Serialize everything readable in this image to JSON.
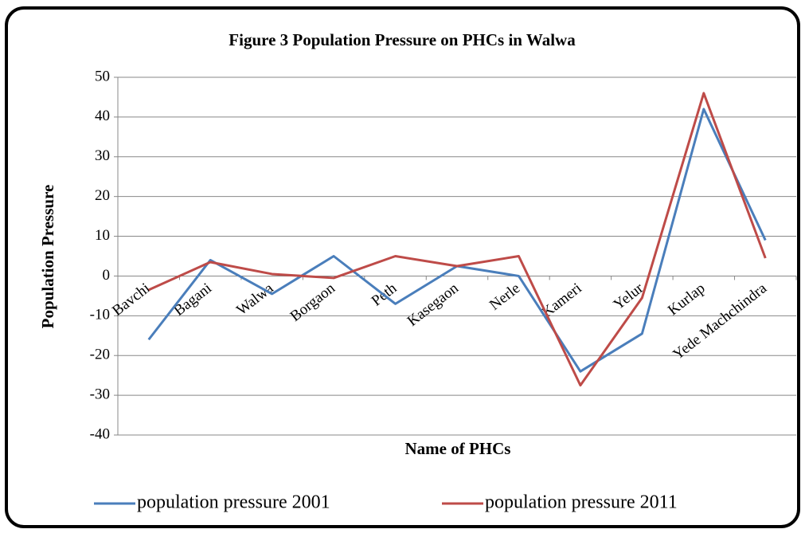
{
  "chart_data": {
    "type": "line",
    "title": "Figure 3 Population Pressure on PHCs in Walwa",
    "x_label": "Name of PHCs",
    "y_label": "Population Pressure",
    "categories": [
      "Bavchi",
      "Bagani",
      "Walwa",
      "Borgaon",
      "Peth",
      "Kasegaon",
      "Nerle",
      "Kameri",
      "Yelur",
      "Kurlap",
      "Yede Machchindra"
    ],
    "series": [
      {
        "name": "population pressure 2001",
        "color": "#4a7ebb",
        "values": [
          -16,
          4,
          -4.5,
          5,
          -7,
          2.5,
          0,
          -24,
          -14.5,
          42,
          9
        ]
      },
      {
        "name": "population pressure 2011",
        "color": "#be4b48",
        "values": [
          -3.5,
          3.5,
          0.5,
          -0.5,
          5,
          2.5,
          5,
          -27.5,
          -5.5,
          46,
          4.5
        ]
      }
    ],
    "ylim": [
      -40,
      50
    ],
    "yticks": [
      -40,
      -30,
      -20,
      -10,
      0,
      10,
      20,
      30,
      40,
      50
    ],
    "grid": true,
    "legend": "bottom"
  }
}
